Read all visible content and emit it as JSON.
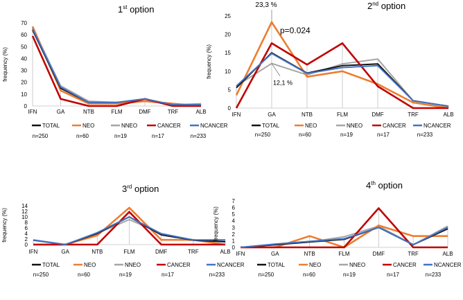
{
  "colors": {
    "TOTAL": "#111111",
    "NEO": "#ed7d31",
    "NNEO": "#a5a5a5",
    "CANCER": "#c00000",
    "NCANCER": "#4472c4"
  },
  "chart_data": [
    {
      "type": "line",
      "title_num": "1",
      "title_sup": "st",
      "title_rest": " option",
      "ylabel": "frequency (%)",
      "ylim": [
        0,
        70
      ],
      "yticks": [
        0,
        10,
        20,
        30,
        40,
        50,
        60,
        70
      ],
      "categories": [
        "IFN",
        "GA",
        "NTB",
        "FLM",
        "DMF",
        "TRF",
        "ALB"
      ],
      "grid": "vertical drop lines at categories",
      "series": [
        {
          "name": "TOTAL",
          "values": [
            64,
            15,
            3,
            3,
            6,
            1,
            1
          ]
        },
        {
          "name": "NEO",
          "values": [
            67,
            13,
            2,
            2,
            4,
            2,
            0
          ]
        },
        {
          "name": "NNEO",
          "values": [
            66,
            17,
            4,
            3,
            6,
            1,
            2
          ]
        },
        {
          "name": "CANCER",
          "values": [
            59,
            6,
            0,
            0,
            6,
            0,
            0
          ]
        },
        {
          "name": "NCANCER",
          "values": [
            65,
            16,
            3,
            3,
            6,
            1,
            1
          ]
        }
      ],
      "legend_names": [
        "TOTAL",
        "NEO",
        "NNEO",
        "CANCER",
        "NCANCER"
      ],
      "legend_counts": [
        "n=250",
        "n=60",
        "n=19",
        "n=17",
        "n=233"
      ],
      "annotations": []
    },
    {
      "type": "line",
      "title_num": "2",
      "title_sup": "nd",
      "title_rest": " option",
      "ylabel": "frequency (%)",
      "ylim": [
        0,
        25
      ],
      "yticks": [
        0,
        5,
        10,
        15,
        20,
        25
      ],
      "categories": [
        "IFN",
        "GA",
        "NTB",
        "FLM",
        "DMF",
        "TRF",
        "ALB"
      ],
      "grid": "vertical drop lines at categories",
      "series": [
        {
          "name": "TOTAL",
          "values": [
            5.5,
            15,
            9.5,
            11.5,
            12,
            2,
            0.5
          ]
        },
        {
          "name": "NEO",
          "values": [
            3.5,
            23.3,
            8.5,
            10,
            6.5,
            1.5,
            0
          ]
        },
        {
          "name": "NNEO",
          "values": [
            6,
            12.1,
            9,
            12,
            13.3,
            2,
            0.5
          ]
        },
        {
          "name": "CANCER",
          "values": [
            0,
            17.6,
            11.8,
            17.6,
            5.9,
            0,
            0
          ]
        },
        {
          "name": "NCANCER",
          "values": [
            6,
            14.8,
            9.4,
            11,
            11.5,
            2,
            0.5
          ]
        }
      ],
      "legend_names": [
        "TOTAL",
        "NEO",
        "NNEO",
        "CANCER",
        "NCANCER"
      ],
      "legend_counts": [
        "n=250",
        "n=60",
        "n=19",
        "n=17",
        "n=233"
      ],
      "annotations": [
        "23,3 %",
        "p=0.024",
        "12,1 %"
      ]
    },
    {
      "type": "line",
      "title_num": "3",
      "title_sup": "rd",
      "title_rest": " option",
      "ylabel": "frequency (%)",
      "ylim": [
        0,
        14
      ],
      "yticks": [
        0,
        2,
        4,
        6,
        8,
        10,
        12,
        14
      ],
      "categories": [
        "IFN",
        "GA",
        "NTB",
        "FLM",
        "DMF",
        "TRF",
        "ALB"
      ],
      "grid": "vertical drop lines at categories",
      "series": [
        {
          "name": "TOTAL",
          "values": [
            1.6,
            0,
            4,
            10,
            3.5,
            1.6,
            1
          ]
        },
        {
          "name": "NEO",
          "values": [
            0,
            0,
            3.3,
            13.3,
            1.7,
            1.7,
            0
          ]
        },
        {
          "name": "NNEO",
          "values": [
            1.6,
            0,
            4,
            9,
            4,
            1.6,
            1.2
          ]
        },
        {
          "name": "CANCER",
          "values": [
            0,
            0,
            0,
            11.8,
            0,
            0,
            0
          ]
        },
        {
          "name": "NCANCER",
          "values": [
            1.7,
            0,
            4.3,
            10,
            3.9,
            1.7,
            1.7
          ]
        }
      ],
      "legend_names": [
        "TOTAL",
        "NEO",
        "NNEO",
        "CANCER",
        "NCANCER"
      ],
      "legend_counts": [
        "n=250",
        "n=60",
        "n=19",
        "n=17",
        "n=233"
      ],
      "annotations": []
    },
    {
      "type": "line",
      "title_num": "4",
      "title_sup": "th",
      "title_rest": " option",
      "ylabel": "frequency (%)",
      "ylim": [
        0,
        7
      ],
      "yticks": [
        0,
        1,
        2,
        3,
        4,
        5,
        6,
        7
      ],
      "categories": [
        "IFN",
        "GA",
        "NTB",
        "FLM",
        "DMF",
        "TRF",
        "ALB"
      ],
      "grid": "vertical drop lines at categories",
      "series": [
        {
          "name": "TOTAL",
          "values": [
            0,
            0.4,
            0.8,
            1.2,
            3,
            0.4,
            2.8
          ]
        },
        {
          "name": "NEO",
          "values": [
            0,
            0,
            1.7,
            0,
            3.3,
            1.7,
            1.7
          ]
        },
        {
          "name": "NNEO",
          "values": [
            0,
            0.4,
            0.8,
            1.6,
            3.2,
            0.4,
            3.2
          ]
        },
        {
          "name": "CANCER",
          "values": [
            0,
            0,
            0,
            0,
            5.9,
            0,
            0
          ]
        },
        {
          "name": "NCANCER",
          "values": [
            0,
            0.5,
            0.9,
            1.3,
            3,
            0.4,
            3
          ]
        }
      ],
      "legend_names": [
        "TOTAL",
        "NEO",
        "NNEO",
        "CANCER",
        "NCANCER"
      ],
      "legend_counts": [
        "n=250",
        "n=60",
        "n=19",
        "n=17",
        "n=233"
      ],
      "annotations": []
    }
  ]
}
